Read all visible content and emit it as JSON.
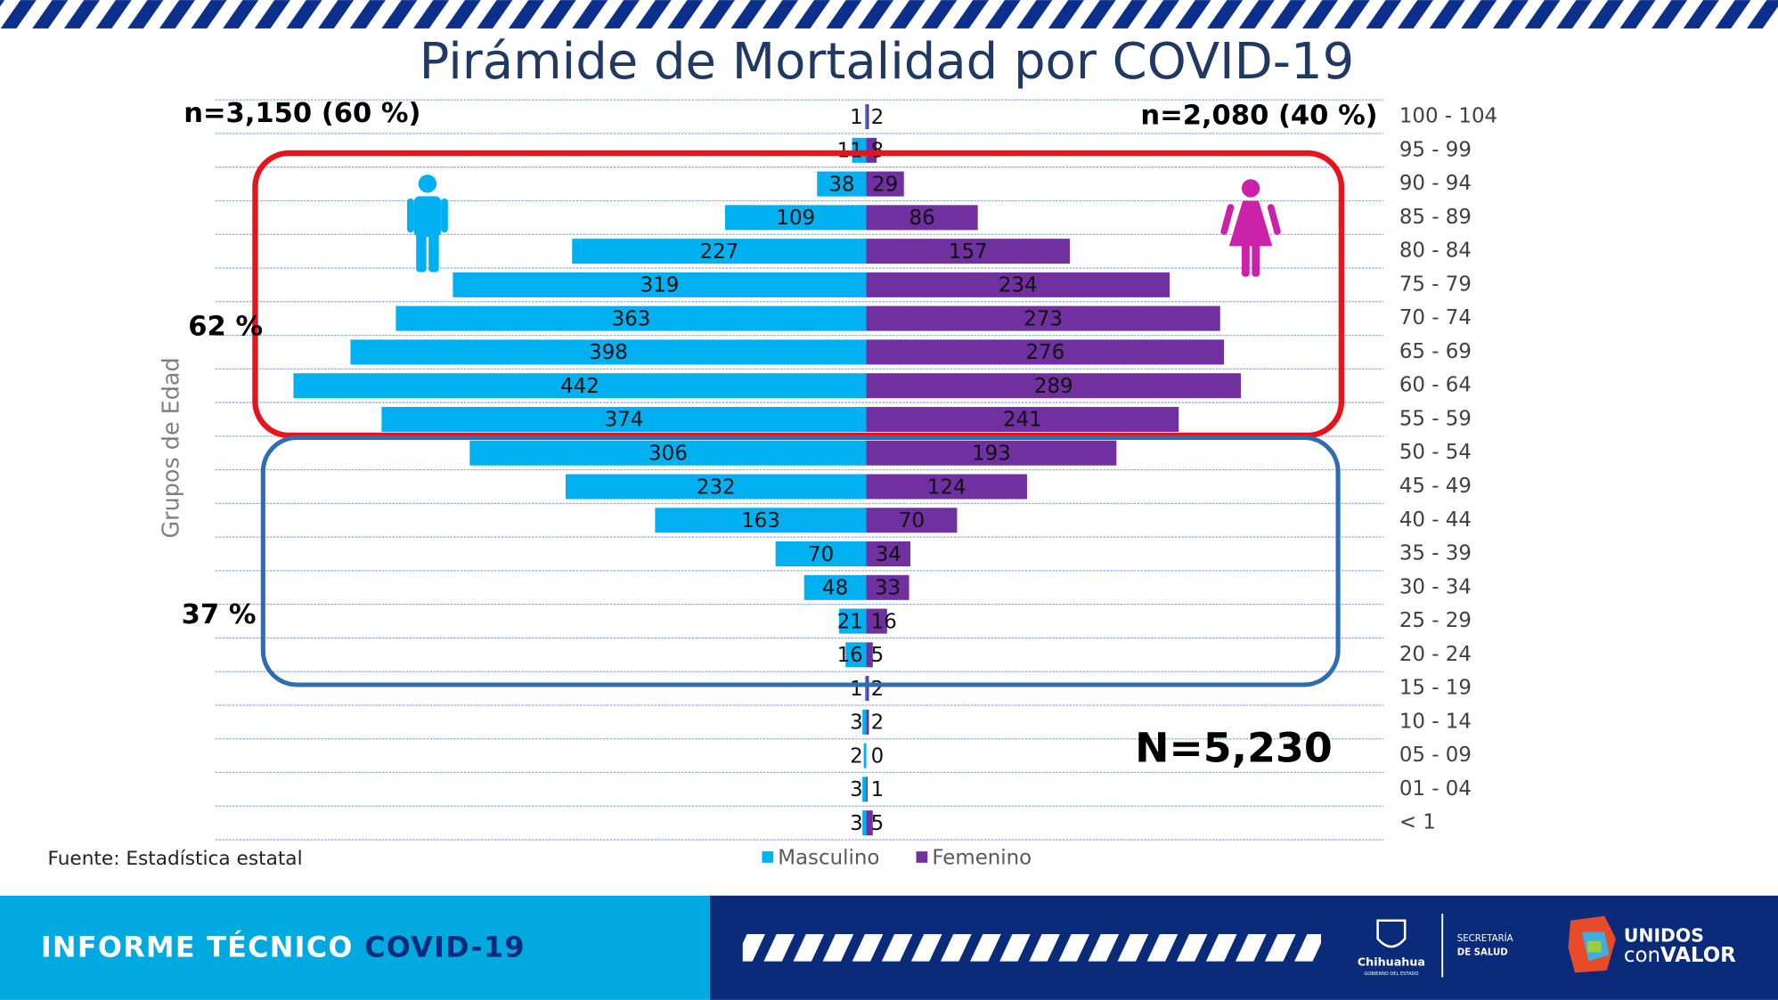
{
  "chart_data": {
    "type": "pyramid",
    "title": "Pirámide de Mortalidad por COVID-19",
    "y_label": "Grupos de Edad",
    "categories": [
      "100 - 104",
      "95 - 99",
      "90 - 94",
      "85 - 89",
      "80 - 84",
      "75 - 79",
      "70 - 74",
      "65 - 69",
      "60 - 64",
      "55 - 59",
      "50 - 54",
      "45 - 49",
      "40 - 44",
      "35 - 39",
      "30 - 34",
      "25 - 29",
      "20 - 24",
      "15 - 19",
      "10 - 14",
      "05 - 09",
      "01 - 04",
      "< 1"
    ],
    "series": [
      {
        "name": "Masculino",
        "color": "#00b0f0",
        "values": [
          1,
          11,
          38,
          109,
          227,
          319,
          363,
          398,
          442,
          374,
          306,
          232,
          163,
          70,
          48,
          21,
          16,
          1,
          3,
          2,
          3,
          3
        ]
      },
      {
        "name": "Femenino",
        "color": "#7030a0",
        "values": [
          2,
          8,
          29,
          86,
          157,
          234,
          273,
          276,
          289,
          241,
          193,
          124,
          70,
          34,
          33,
          16,
          5,
          2,
          2,
          0,
          1,
          5
        ]
      }
    ],
    "annotations": {
      "male_total": "n=3,150 (60 %)",
      "female_total": "n=2,080 (40 %)",
      "upper_share": "62 %",
      "lower_share": "37 %",
      "total": "N=5,230"
    },
    "source": "Fuente: Estadística estatal"
  },
  "footer": {
    "report": "INFORME TÉCNICO",
    "topic": "COVID-19",
    "state": "Chihuahua",
    "state_sub": "GOBIERNO DEL ESTADO",
    "secretary_1": "SECRETARÍA",
    "secretary_2": "DE SALUD",
    "slogan_1": "UNIDOS",
    "slogan_2a": "con",
    "slogan_2b": "VALOR"
  }
}
